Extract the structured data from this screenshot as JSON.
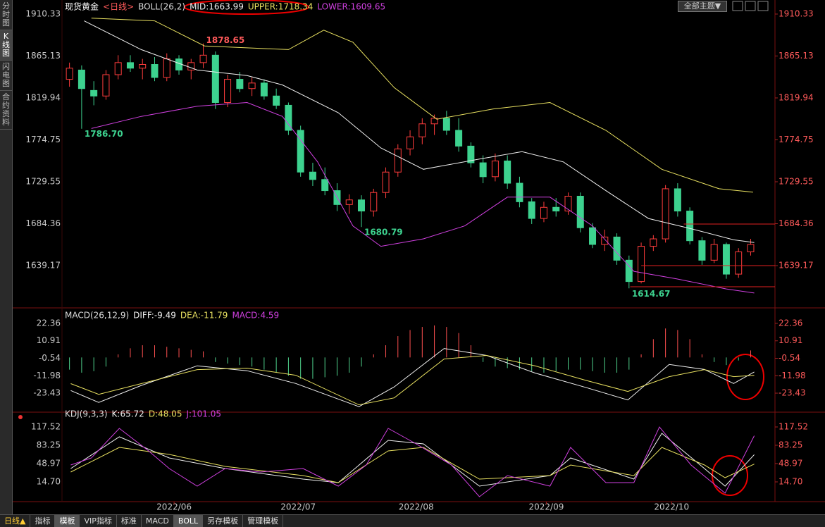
{
  "chart_data": [
    {
      "type": "candlestick",
      "title": "现货黄金",
      "subtitle": "<日线>",
      "indicator": "BOLL(26,2)",
      "up_color": "#ff3c3c",
      "down_color": "#3dd28f",
      "xlim": [
        -0.5,
        58
      ],
      "ylim": [
        1593.6,
        1914.1
      ],
      "yticks": [
        {
          "value": 1910.33,
          "label": "1910.33"
        },
        {
          "value": 1865.13,
          "label": "1865.13"
        },
        {
          "value": 1819.94,
          "label": "1819.94"
        },
        {
          "value": 1774.75,
          "label": "1774.75"
        },
        {
          "value": 1729.55,
          "label": "1729.55"
        },
        {
          "value": 1684.36,
          "label": "1684.36"
        },
        {
          "value": 1639.17,
          "label": "1639.17"
        }
      ],
      "x": [
        0,
        1,
        2,
        3,
        4,
        5,
        6,
        7,
        8,
        9,
        10,
        11,
        12,
        13,
        14,
        15,
        16,
        17,
        18,
        19,
        20,
        21,
        22,
        23,
        24,
        25,
        26,
        27,
        28,
        29,
        30,
        31,
        32,
        33,
        34,
        35,
        36,
        37,
        38,
        39,
        40,
        41,
        42,
        43,
        44,
        45,
        46,
        47,
        48,
        49,
        50,
        51,
        52,
        53,
        54,
        55,
        56
      ],
      "open": [
        1840,
        1850,
        1828,
        1822,
        1845,
        1858,
        1852,
        1856,
        1842,
        1862,
        1850,
        1858,
        1866,
        1815,
        1840,
        1830,
        1836,
        1822,
        1812,
        1785,
        1740,
        1732,
        1720,
        1705,
        1710,
        1698,
        1718,
        1740,
        1765,
        1778,
        1792,
        1798,
        1785,
        1768,
        1750,
        1735,
        1752,
        1728,
        1708,
        1690,
        1702,
        1698,
        1714,
        1680,
        1662,
        1670,
        1645,
        1622,
        1660,
        1668,
        1722,
        1698,
        1666,
        1645,
        1662,
        1630,
        1654
      ],
      "high": [
        1858,
        1855,
        1838,
        1850,
        1866,
        1866,
        1862,
        1864,
        1868,
        1866,
        1862,
        1878.65,
        1870,
        1845,
        1848,
        1842,
        1840,
        1830,
        1815,
        1790,
        1750,
        1745,
        1728,
        1716,
        1715,
        1722,
        1745,
        1770,
        1785,
        1798,
        1802,
        1806,
        1798,
        1772,
        1758,
        1760,
        1758,
        1735,
        1712,
        1708,
        1712,
        1718,
        1718,
        1685,
        1678,
        1674,
        1650,
        1664,
        1672,
        1726,
        1728,
        1702,
        1670,
        1668,
        1664,
        1658,
        1668
      ],
      "low": [
        1832,
        1786.7,
        1812,
        1818,
        1840,
        1848,
        1840,
        1838,
        1838,
        1845,
        1840,
        1852,
        1808,
        1810,
        1826,
        1822,
        1818,
        1808,
        1780,
        1735,
        1725,
        1715,
        1698,
        1695,
        1680.79,
        1692,
        1712,
        1735,
        1758,
        1770,
        1780,
        1780,
        1762,
        1745,
        1728,
        1730,
        1722,
        1702,
        1684,
        1686,
        1692,
        1694,
        1675,
        1658,
        1655,
        1640,
        1614.67,
        1620,
        1655,
        1664,
        1692,
        1662,
        1640,
        1642,
        1625,
        1626,
        1650
      ],
      "close": [
        1852,
        1830,
        1822,
        1845,
        1858,
        1852,
        1856,
        1842,
        1862,
        1850,
        1858,
        1866,
        1815,
        1840,
        1830,
        1836,
        1822,
        1812,
        1785,
        1740,
        1732,
        1720,
        1705,
        1710,
        1698,
        1718,
        1740,
        1765,
        1778,
        1792,
        1798,
        1785,
        1768,
        1750,
        1735,
        1752,
        1728,
        1708,
        1690,
        1702,
        1698,
        1714,
        1680,
        1662,
        1670,
        1645,
        1622,
        1660,
        1668,
        1722,
        1698,
        1666,
        1645,
        1662,
        1630,
        1654,
        1662
      ],
      "series": [
        {
          "name": "MID:1663.99",
          "color": "#f0f0f0",
          "x": [
            1.2,
            5.9,
            10.5,
            14.6,
            17.5,
            22.1,
            25.6,
            29.1,
            33.7,
            37.2,
            40.6,
            44.1,
            47.6,
            51.1,
            54.6,
            56.3
          ],
          "values": [
            1903,
            1872,
            1850,
            1844,
            1834,
            1804,
            1766,
            1743,
            1754,
            1762,
            1751,
            1720,
            1690,
            1679,
            1667,
            1663.99
          ]
        },
        {
          "name": "UPPER:1718.34",
          "color": "#e8e060",
          "x": [
            1.8,
            7.0,
            11.1,
            18.0,
            20.9,
            23.3,
            26.7,
            30.2,
            34.8,
            39.5,
            44.1,
            48.7,
            53.4,
            56.2
          ],
          "values": [
            1906,
            1903,
            1876,
            1872,
            1893,
            1880,
            1831,
            1797,
            1808,
            1815,
            1785,
            1743,
            1722,
            1718.34
          ]
        },
        {
          "name": "LOWER:1609.65",
          "color": "#d040e0",
          "x": [
            1.8,
            5.9,
            10.5,
            14.6,
            17.5,
            20.4,
            23.3,
            25.6,
            29.1,
            32.5,
            36.0,
            39.5,
            43.0,
            46.4,
            49.9,
            54.0,
            56.3
          ],
          "values": [
            1787,
            1800,
            1811,
            1815,
            1800,
            1751,
            1682,
            1660,
            1668,
            1682,
            1713,
            1713,
            1682,
            1633,
            1625,
            1614,
            1609.65
          ]
        }
      ],
      "annotations": [
        {
          "x": 11,
          "value": 1878.65,
          "label": "1878.65",
          "color": "#ff5a5a"
        },
        {
          "x": 1,
          "value": 1786.7,
          "label": "1786.70",
          "color": "#3dd28f"
        },
        {
          "x": 24,
          "value": 1680.79,
          "label": "1680.79",
          "color": "#3dd28f"
        },
        {
          "x": 46,
          "value": 1614.67,
          "label": "1614.67",
          "color": "#3dd28f"
        }
      ],
      "levels": [
        {
          "x": 50.5,
          "value": 1684
        },
        {
          "x": 47,
          "value": 1639.17
        },
        {
          "x": 46.1,
          "value": 1616.4
        }
      ]
    },
    {
      "type": "macd",
      "indicator": "MACD(26,12,9)",
      "up_color": "#ff5050",
      "down_color": "#4fd28c",
      "xlim": [
        -0.5,
        58
      ],
      "ylim": [
        -35.9,
        26.5
      ],
      "yticks": [
        22.36,
        10.91,
        -0.54,
        -11.98,
        -23.43
      ],
      "x": [
        0,
        1,
        2,
        3,
        4,
        5,
        6,
        7,
        8,
        9,
        10,
        11,
        12,
        13,
        14,
        15,
        16,
        17,
        18,
        19,
        20,
        21,
        22,
        23,
        24,
        25,
        26,
        27,
        28,
        29,
        30,
        31,
        32,
        33,
        34,
        35,
        36,
        37,
        38,
        39,
        40,
        41,
        42,
        43,
        44,
        45,
        46,
        47,
        48,
        49,
        50,
        51,
        52,
        53,
        54,
        55,
        56
      ],
      "bars": [
        -8,
        -10,
        -9,
        -6,
        2,
        6,
        8,
        8,
        7,
        6,
        5,
        4,
        -3,
        -4,
        -5,
        -6,
        -8,
        -10,
        -12,
        -14,
        -14,
        -13,
        -12,
        -10,
        -6,
        2,
        8,
        14,
        18,
        20,
        21,
        20,
        16,
        8,
        -3,
        -6,
        -7,
        -8,
        -9,
        -10,
        -9,
        -8,
        -8,
        -9,
        -10,
        -10,
        -8,
        2,
        12,
        19,
        18,
        12,
        2,
        -3,
        -5,
        -2,
        4.59
      ],
      "bar_name": "MACD:4.59",
      "bar_color": "#d040e0",
      "series": [
        {
          "name": "DIFF:-9.49",
          "color": "#f0f0f0",
          "x": [
            0.1,
            2.4,
            5.9,
            10.5,
            14.6,
            18.6,
            23.8,
            26.7,
            30.8,
            34.3,
            38.3,
            42.4,
            45.9,
            49.3,
            52.2,
            54.6,
            56.3
          ],
          "values": [
            -21.7,
            -29.5,
            -18.4,
            -5.5,
            -8.7,
            -17.1,
            -32.3,
            -19.3,
            5.9,
            1.3,
            -10.3,
            -19.6,
            -27.9,
            -4.6,
            -7.9,
            -17.1,
            -9.49
          ]
        },
        {
          "name": "DEA:-11.79",
          "color": "#e8e060",
          "x": [
            0.1,
            2.4,
            5.9,
            10.5,
            14.6,
            18.6,
            23.8,
            26.7,
            30.8,
            34.3,
            38.3,
            42.4,
            45.9,
            49.3,
            52.2,
            54.6,
            56.3
          ],
          "values": [
            -17.2,
            -24.2,
            -17.2,
            -8.0,
            -7.0,
            -11.7,
            -31.1,
            -26.5,
            -1.0,
            1.3,
            -5.6,
            -14.9,
            -22.3,
            -12.6,
            -8.0,
            -12.6,
            -11.79
          ]
        }
      ]
    },
    {
      "type": "line",
      "indicator": "KDJ(9,3,3)",
      "xlim": [
        -0.5,
        58
      ],
      "ylim": [
        -26.2,
        138.6
      ],
      "yticks": [
        117.52,
        83.25,
        48.97,
        {
          "value": 14.7,
          "label": "14.70"
        }
      ],
      "xticks": [
        {
          "value": 8.6,
          "label": "2022/06"
        },
        {
          "value": 18.8,
          "label": "2022/07"
        },
        {
          "value": 28.5,
          "label": "2022/08"
        },
        {
          "value": 39.2,
          "label": "2022/09"
        },
        {
          "value": 49.5,
          "label": "2022/10"
        }
      ],
      "series": [
        {
          "name": "K:65.72",
          "color": "#f0f0f0",
          "x": [
            0.1,
            4.1,
            8.2,
            12.8,
            19.2,
            22.1,
            26.2,
            29.1,
            33.7,
            39.5,
            41.2,
            46.4,
            48.7,
            52.2,
            53.9,
            56.3
          ],
          "values": [
            39.7,
            99.1,
            59.5,
            39.7,
            20.0,
            13.4,
            92.5,
            85.9,
            6.8,
            26.6,
            59.5,
            20.0,
            105.6,
            39.7,
            6.8,
            65.72
          ]
        },
        {
          "name": "D:48.05",
          "color": "#e8e060",
          "x": [
            0.1,
            4.1,
            8.2,
            12.8,
            19.2,
            22.1,
            26.2,
            29.1,
            33.7,
            39.5,
            41.2,
            46.4,
            48.7,
            52.2,
            53.9,
            56.3
          ],
          "values": [
            33.1,
            79.3,
            66.1,
            43.7,
            26.6,
            13.4,
            72.7,
            79.3,
            20.0,
            26.6,
            46.3,
            26.6,
            79.3,
            46.3,
            22.6,
            48.05
          ]
        },
        {
          "name": "J:101.05",
          "color": "#d040e0",
          "x": [
            0.1,
            1.8,
            4.1,
            6.5,
            8.2,
            10.5,
            12.8,
            15.7,
            19.2,
            22.1,
            24.4,
            26.2,
            28.5,
            31.4,
            33.7,
            36.0,
            39.5,
            41.2,
            44.1,
            46.4,
            48.5,
            51.1,
            53.9,
            56.3
          ],
          "values": [
            46.3,
            59.5,
            114.9,
            72.7,
            39.7,
            6.8,
            39.7,
            33.1,
            39.7,
            6.8,
            46.3,
            114.9,
            85.9,
            46.3,
            -13.0,
            26.6,
            6.8,
            79.3,
            13.4,
            13.4,
            117.5,
            46.3,
            -6.4,
            101.05
          ]
        }
      ]
    }
  ],
  "ui": {
    "sidebar": [
      "分时图",
      "K线图",
      "闪电图",
      "合约资料"
    ],
    "theme": "全部主题▼",
    "period": "日线▲",
    "tabs": [
      "指标",
      "模板",
      "VIP指标",
      "标准",
      "MACD",
      "BOLL",
      "另存模板",
      "管理模板"
    ]
  }
}
